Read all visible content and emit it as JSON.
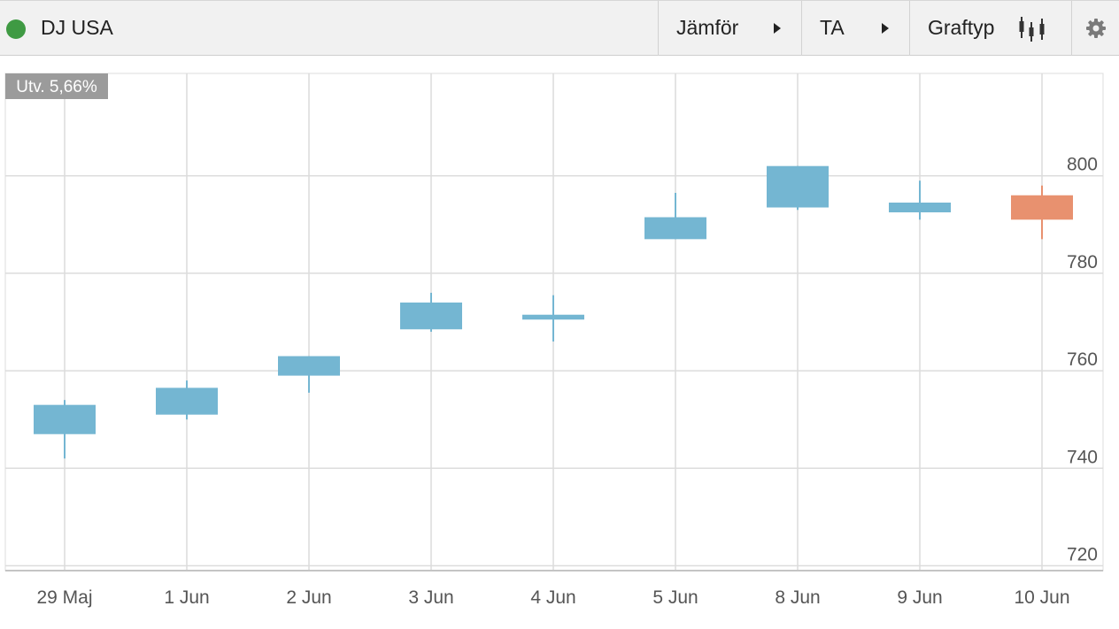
{
  "toolbar": {
    "title": "DJ USA",
    "compare_label": "Jämför",
    "ta_label": "TA",
    "charttype_label": "Graftyp",
    "status_color": "#3f9a43",
    "icons": {
      "compare_arrow": "triangle-right-icon",
      "ta_arrow": "triangle-right-icon",
      "charttype": "candlestick-icon",
      "settings": "gear-icon"
    }
  },
  "chart_data": {
    "type": "candlestick",
    "badge": "Utv. 5,66%",
    "categories": [
      "29 Maj",
      "1 Jun",
      "2 Jun",
      "3 Jun",
      "4 Jun",
      "5 Jun",
      "8 Jun",
      "9 Jun",
      "10 Jun"
    ],
    "ohlc": [
      {
        "open": 747,
        "high": 754,
        "low": 742,
        "close": 753
      },
      {
        "open": 751,
        "high": 758,
        "low": 750,
        "close": 756.5
      },
      {
        "open": 759,
        "high": 763,
        "low": 755.5,
        "close": 763
      },
      {
        "open": 768.5,
        "high": 776,
        "low": 768,
        "close": 774
      },
      {
        "open": 770.5,
        "high": 775.5,
        "low": 766,
        "close": 771.5
      },
      {
        "open": 787,
        "high": 796.5,
        "low": 787,
        "close": 791.5
      },
      {
        "open": 793.5,
        "high": 802,
        "low": 793,
        "close": 802
      },
      {
        "open": 792.5,
        "high": 799,
        "low": 791,
        "close": 794.5
      },
      {
        "open": 796,
        "high": 798,
        "low": 787,
        "close": 791
      }
    ],
    "yticks": [
      720,
      740,
      760,
      780,
      800
    ],
    "ylim": [
      719,
      821
    ],
    "grid": true,
    "colors": {
      "up": "#74b6d2",
      "down": "#e8916f",
      "grid": "#dcdcdc",
      "axis": "#c4c4c4",
      "badge_bg": "#9b9b9b",
      "badge_text": "#ffffff"
    }
  }
}
